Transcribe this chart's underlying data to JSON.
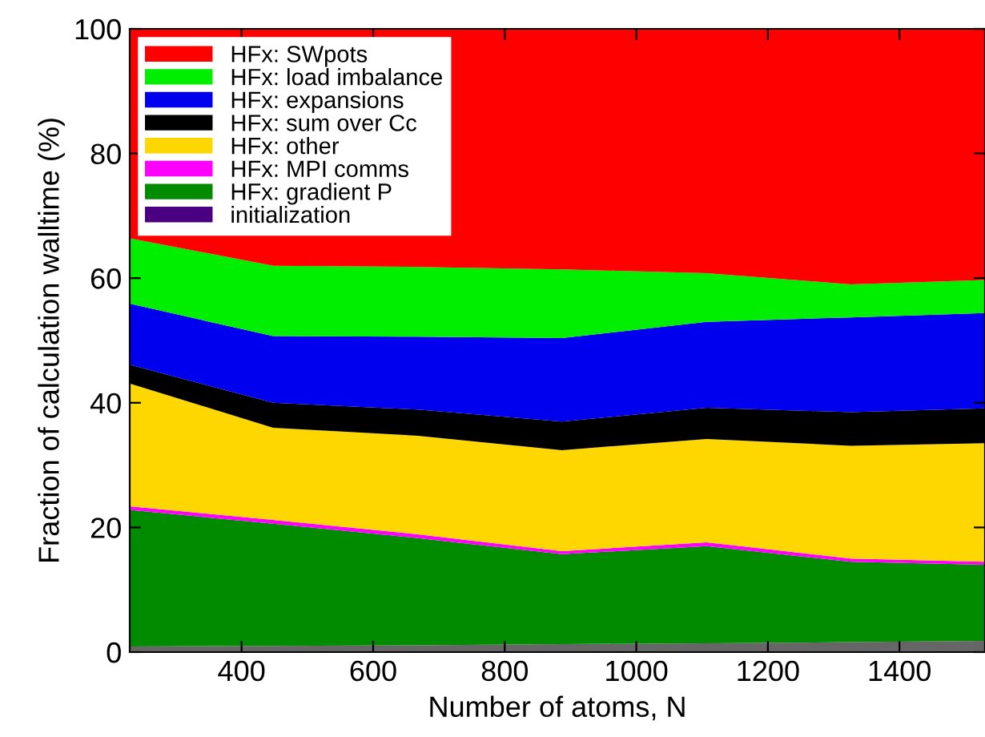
{
  "chart_data": {
    "type": "area",
    "stacked": true,
    "xlabel": "Number of atoms, N",
    "ylabel": "Fraction of calculation walltime (%)",
    "x": [
      230,
      448,
      668,
      887,
      1107,
      1326,
      1530
    ],
    "xlim": [
      230,
      1530
    ],
    "xticks": [
      400,
      600,
      800,
      1000,
      1200,
      1400
    ],
    "ylim": [
      0,
      100
    ],
    "yticks": [
      0,
      20,
      40,
      60,
      80,
      100
    ],
    "legend": "top left",
    "series": [
      {
        "name": "initialization",
        "color": "#4b0082",
        "values": [
          null,
          null,
          null,
          null,
          null,
          null,
          null
        ]
      },
      {
        "color": "#666666",
        "values": [
          0.9,
          1.0,
          1.1,
          1.3,
          1.4,
          1.6,
          1.8
        ]
      },
      {
        "name": "HFx: gradient P",
        "color": "#008b00",
        "values": [
          21.9,
          19.6,
          17.2,
          14.4,
          15.6,
          12.9,
          12.2
        ]
      },
      {
        "name": "HFx: MPI comms",
        "color": "#ff00ff",
        "values": [
          0.6,
          0.6,
          0.6,
          0.5,
          0.6,
          0.5,
          0.5
        ]
      },
      {
        "name": "HFx: other",
        "color": "#ffd700",
        "values": [
          19.7,
          14.8,
          15.8,
          16.2,
          16.6,
          18.1,
          19.0
        ]
      },
      {
        "name": "HFx: sum over Cc",
        "color": "#000000",
        "values": [
          3.0,
          4.0,
          4.2,
          4.6,
          5.0,
          5.4,
          5.6
        ]
      },
      {
        "name": "HFx: expansions",
        "color": "#0000ee",
        "values": [
          9.8,
          10.7,
          11.7,
          13.4,
          13.8,
          15.2,
          15.3
        ]
      },
      {
        "name": "HFx: load imbalance",
        "color": "#00ee00",
        "values": [
          10.5,
          11.3,
          11.2,
          11.0,
          7.8,
          5.3,
          5.3
        ]
      },
      {
        "name": "HFx: SWpots",
        "color": "#ff0000",
        "values": [
          33.6,
          38.0,
          38.2,
          38.6,
          39.2,
          41.0,
          40.3
        ]
      }
    ]
  }
}
